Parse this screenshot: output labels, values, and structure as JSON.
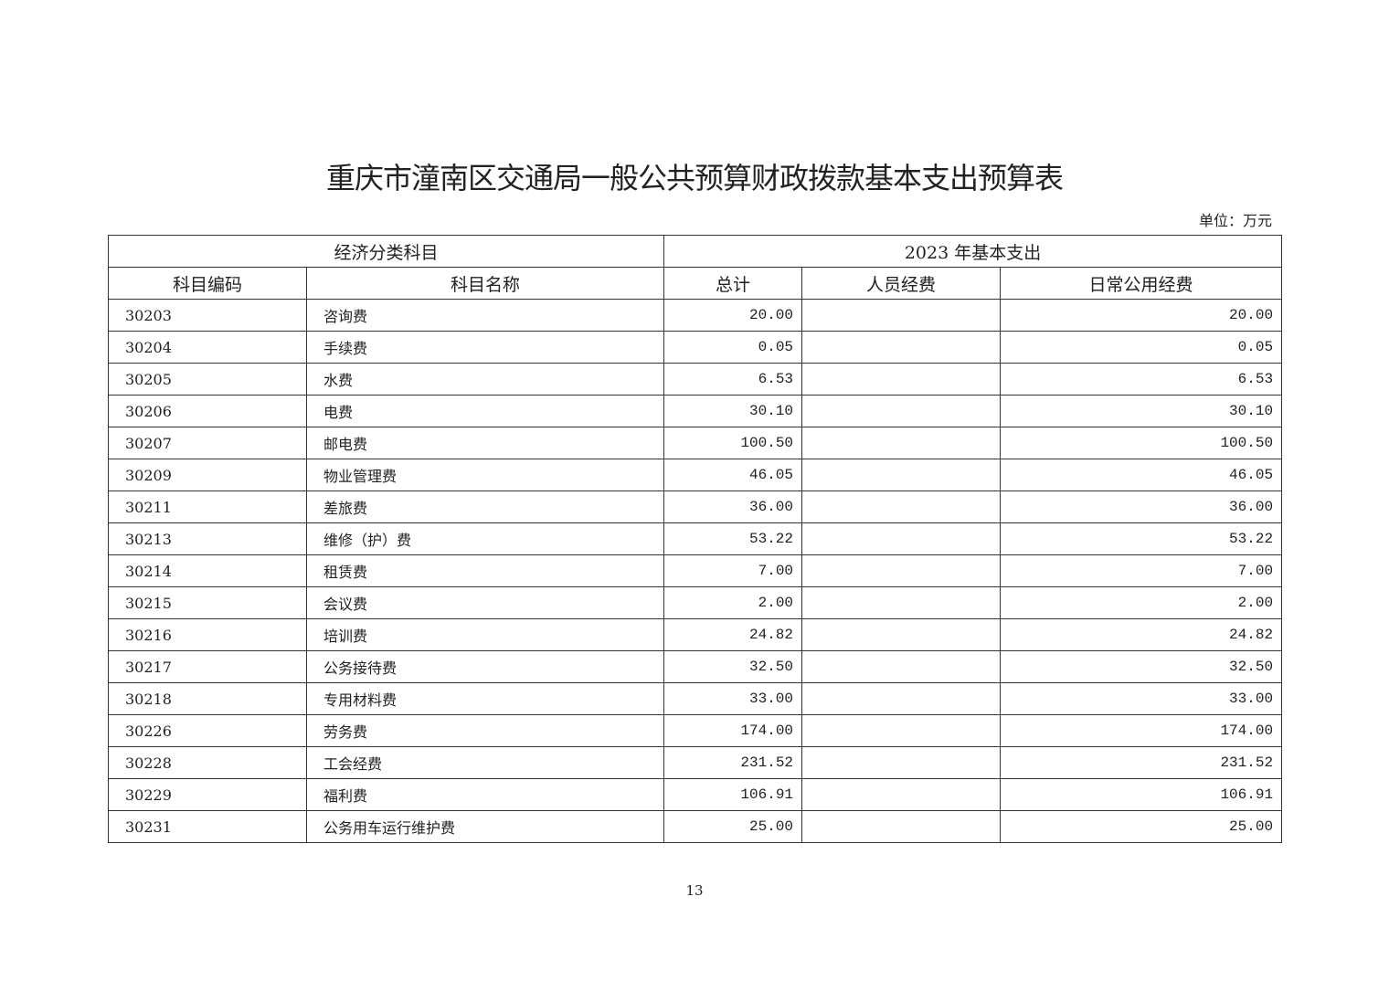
{
  "title": "重庆市潼南区交通局一般公共预算财政拨款基本支出预算表",
  "unit": "单位：万元",
  "header": {
    "group1": "经济分类科目",
    "group2": "2023 年基本支出",
    "cols": [
      "科目编码",
      "科目名称",
      "总计",
      "人员经费",
      "日常公用经费"
    ]
  },
  "rows": [
    {
      "code": "30203",
      "name": "咨询费",
      "total": "20.00",
      "personnel": "",
      "public": "20.00"
    },
    {
      "code": "30204",
      "name": "手续费",
      "total": "0.05",
      "personnel": "",
      "public": "0.05"
    },
    {
      "code": "30205",
      "name": "水费",
      "total": "6.53",
      "personnel": "",
      "public": "6.53"
    },
    {
      "code": "30206",
      "name": "电费",
      "total": "30.10",
      "personnel": "",
      "public": "30.10"
    },
    {
      "code": "30207",
      "name": "邮电费",
      "total": "100.50",
      "personnel": "",
      "public": "100.50"
    },
    {
      "code": "30209",
      "name": "物业管理费",
      "total": "46.05",
      "personnel": "",
      "public": "46.05"
    },
    {
      "code": "30211",
      "name": "差旅费",
      "total": "36.00",
      "personnel": "",
      "public": "36.00"
    },
    {
      "code": "30213",
      "name": "维修（护）费",
      "total": "53.22",
      "personnel": "",
      "public": "53.22"
    },
    {
      "code": "30214",
      "name": "租赁费",
      "total": "7.00",
      "personnel": "",
      "public": "7.00"
    },
    {
      "code": "30215",
      "name": "会议费",
      "total": "2.00",
      "personnel": "",
      "public": "2.00"
    },
    {
      "code": "30216",
      "name": "培训费",
      "total": "24.82",
      "personnel": "",
      "public": "24.82"
    },
    {
      "code": "30217",
      "name": "公务接待费",
      "total": "32.50",
      "personnel": "",
      "public": "32.50"
    },
    {
      "code": "30218",
      "name": "专用材料费",
      "total": "33.00",
      "personnel": "",
      "public": "33.00"
    },
    {
      "code": "30226",
      "name": "劳务费",
      "total": "174.00",
      "personnel": "",
      "public": "174.00"
    },
    {
      "code": "30228",
      "name": "工会经费",
      "total": "231.52",
      "personnel": "",
      "public": "231.52"
    },
    {
      "code": "30229",
      "name": "福利费",
      "total": "106.91",
      "personnel": "",
      "public": "106.91"
    },
    {
      "code": "30231",
      "name": "公务用车运行维护费",
      "total": "25.00",
      "personnel": "",
      "public": "25.00"
    }
  ],
  "page_number": "13"
}
